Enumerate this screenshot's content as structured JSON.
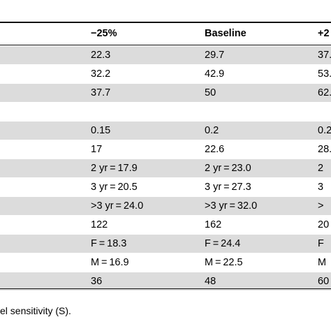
{
  "table": {
    "columns": [
      "−25%",
      "Baseline",
      "+2"
    ],
    "rows": [
      [
        "22.3",
        "29.7",
        "37."
      ],
      [
        "32.2",
        "42.9",
        "53."
      ],
      [
        "37.7",
        "50",
        "62."
      ],
      [
        "",
        "",
        ""
      ],
      [
        "0.15",
        "0.2",
        "0.2"
      ],
      [
        "17",
        "22.6",
        "28."
      ],
      [
        "2 yr = 17.9",
        "2 yr = 23.0",
        "2"
      ],
      [
        "3 yr = 20.5",
        "3 yr = 27.3",
        "3"
      ],
      [
        ">3 yr = 24.0",
        ">3 yr = 32.0",
        ">"
      ],
      [
        "122",
        "162",
        "20"
      ],
      [
        "F = 18.3",
        "F = 24.4",
        "F"
      ],
      [
        "M = 16.9",
        "M = 22.5",
        "M"
      ],
      [
        "36",
        "48",
        "60"
      ]
    ]
  },
  "footnote": "el sensitivity (S)."
}
